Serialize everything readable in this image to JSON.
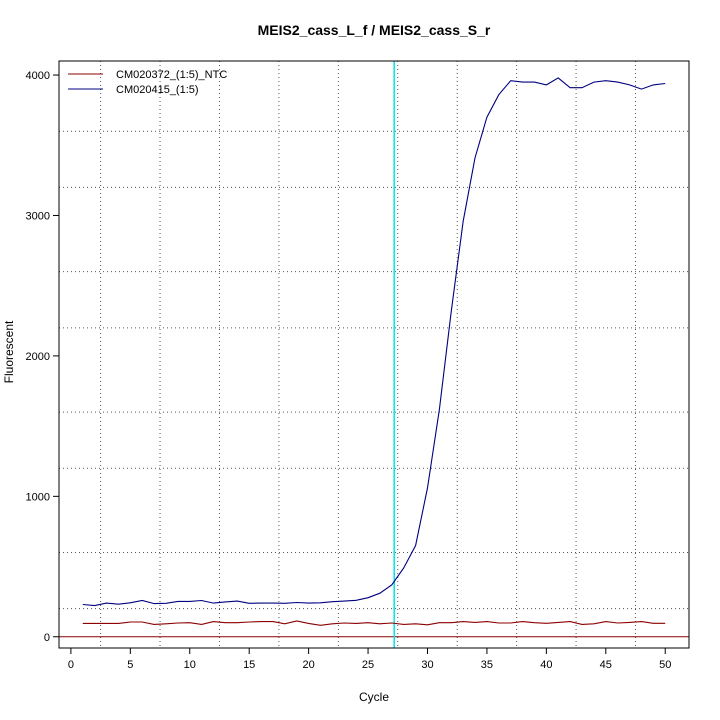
{
  "chart_data": {
    "type": "line",
    "title": "MEIS2_cass_L_f / MEIS2_cass_S_r",
    "xlabel": "Cycle",
    "ylabel": "Fluorescent",
    "xlim": [
      -1,
      52
    ],
    "ylim": [
      -80,
      4100
    ],
    "xticks": [
      0,
      5,
      10,
      15,
      20,
      25,
      30,
      35,
      40,
      45,
      50
    ],
    "yticks": [
      0,
      1000,
      2000,
      3000,
      4000
    ],
    "grid": true,
    "legend_position": "top-left",
    "threshold_cycle": 27.2,
    "threshold_color": "#00e5ee",
    "baseline_y": 0,
    "baseline_color": "#8b0000",
    "x": [
      1,
      2,
      3,
      4,
      5,
      6,
      7,
      8,
      9,
      10,
      11,
      12,
      13,
      14,
      15,
      16,
      17,
      18,
      19,
      20,
      21,
      22,
      23,
      24,
      25,
      26,
      27,
      28,
      29,
      30,
      31,
      32,
      33,
      34,
      35,
      36,
      37,
      38,
      39,
      40,
      41,
      42,
      43,
      44,
      45,
      46,
      47,
      48,
      49,
      50
    ],
    "series": [
      {
        "name": "CM020372_(1:5)_NTC",
        "color": "#8b0000",
        "values": [
          95,
          95,
          95,
          95,
          105,
          105,
          88,
          92,
          98,
          100,
          88,
          108,
          100,
          100,
          105,
          108,
          108,
          92,
          112,
          95,
          82,
          92,
          98,
          95,
          100,
          92,
          98,
          88,
          92,
          85,
          100,
          100,
          108,
          102,
          108,
          98,
          98,
          108,
          100,
          96,
          102,
          108,
          88,
          92,
          108,
          98,
          102,
          108,
          96,
          96
        ]
      },
      {
        "name": "CM020415_(1:5)",
        "color": "#000080",
        "values": [
          230,
          222,
          240,
          232,
          242,
          258,
          236,
          238,
          252,
          252,
          258,
          240,
          248,
          254,
          238,
          240,
          240,
          238,
          244,
          240,
          242,
          250,
          254,
          260,
          278,
          310,
          370,
          490,
          650,
          1060,
          1620,
          2320,
          2960,
          3410,
          3700,
          3860,
          3960,
          3950,
          3950,
          3930,
          3980,
          3910,
          3910,
          3950,
          3960,
          3950,
          3930,
          3900,
          3930,
          3940
        ]
      }
    ]
  }
}
